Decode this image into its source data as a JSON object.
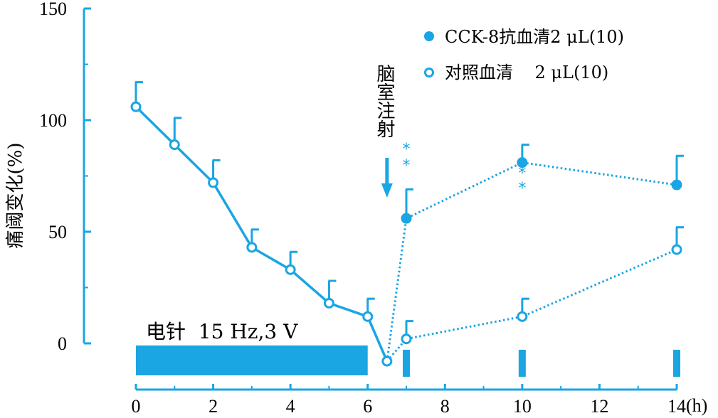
{
  "chart_data": {
    "type": "line",
    "xlabel": "",
    "x_unit": "(h)",
    "ylabel": "痛阈变化(%)",
    "xlim": [
      0,
      14
    ],
    "ylim": [
      0,
      150
    ],
    "xticks": [
      "0",
      "2",
      "4",
      "6",
      "8",
      "10",
      "12",
      "14"
    ],
    "yticks": [
      "0",
      "50",
      "100",
      "150"
    ],
    "colors": {
      "main": "#1aa5e3"
    },
    "stimulation_label": "电针  15 Hz,3 V",
    "stimulation_range": [
      0,
      6
    ],
    "injection_label": "脑室注射",
    "injection_x": 6.5,
    "significance_marks": [
      {
        "x": 7,
        "text": "**"
      },
      {
        "x": 10,
        "text": "**"
      }
    ],
    "baseline_series": {
      "x": [
        0,
        1,
        2,
        3,
        4,
        5,
        6,
        6.5
      ],
      "y": [
        106,
        89,
        72,
        43,
        33,
        18,
        12,
        -8
      ],
      "err": [
        11,
        12,
        10,
        8,
        8,
        10,
        8,
        0
      ]
    },
    "series": [
      {
        "name": "CCK-8抗血清2 μL(10)",
        "marker": "filled",
        "x": [
          6.5,
          7,
          10,
          14
        ],
        "y": [
          -8,
          56,
          81,
          71
        ],
        "err": [
          0,
          13,
          8,
          13
        ]
      },
      {
        "name": "对照血清    2 μL(10)",
        "marker": "open",
        "x": [
          6.5,
          7,
          10,
          14
        ],
        "y": [
          -8,
          2,
          12,
          42
        ],
        "err": [
          0,
          8,
          8,
          10
        ]
      }
    ],
    "legend_position": "top-right",
    "grid": false
  }
}
